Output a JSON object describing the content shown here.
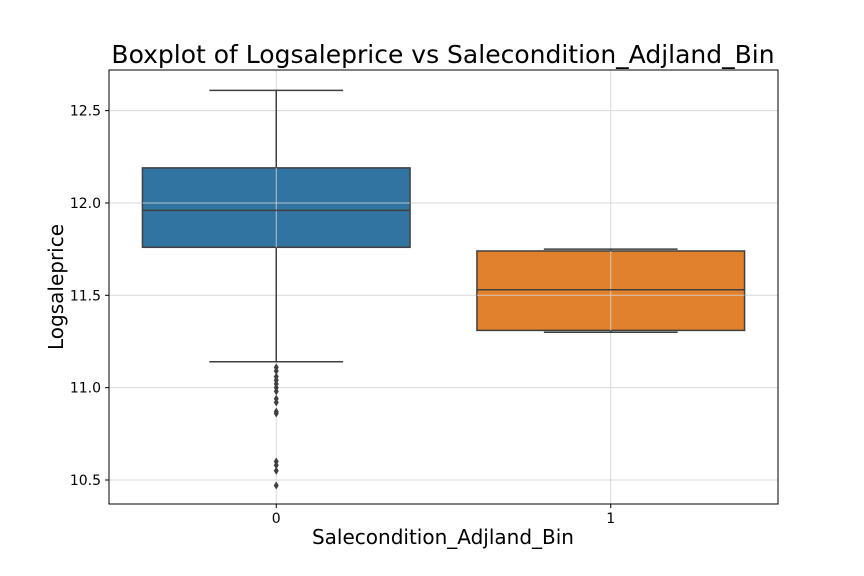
{
  "chart_data": {
    "type": "box",
    "title": "Boxplot of Logsaleprice vs Salecondition_Adjland_Bin",
    "xlabel": "Salecondition_Adjland_Bin",
    "ylabel": "Logsaleprice",
    "categories": [
      "0",
      "1"
    ],
    "ylim": [
      10.37,
      12.72
    ],
    "yticks": [
      "10.5",
      "11.0",
      "11.5",
      "12.0",
      "12.5"
    ],
    "grid": true,
    "boxes": [
      {
        "category": "0",
        "color": "#3274a1",
        "whisker_low": 11.14,
        "q1": 11.76,
        "median": 11.96,
        "q3": 12.19,
        "whisker_high": 12.61,
        "outliers": [
          11.11,
          11.09,
          11.06,
          11.04,
          11.02,
          11.0,
          10.98,
          10.94,
          10.92,
          10.87,
          10.86,
          10.6,
          10.58,
          10.55,
          10.47
        ]
      },
      {
        "category": "1",
        "color": "#e1812c",
        "whisker_low": 11.3,
        "q1": 11.31,
        "median": 11.53,
        "q3": 11.74,
        "whisker_high": 11.75,
        "outliers": []
      }
    ]
  }
}
